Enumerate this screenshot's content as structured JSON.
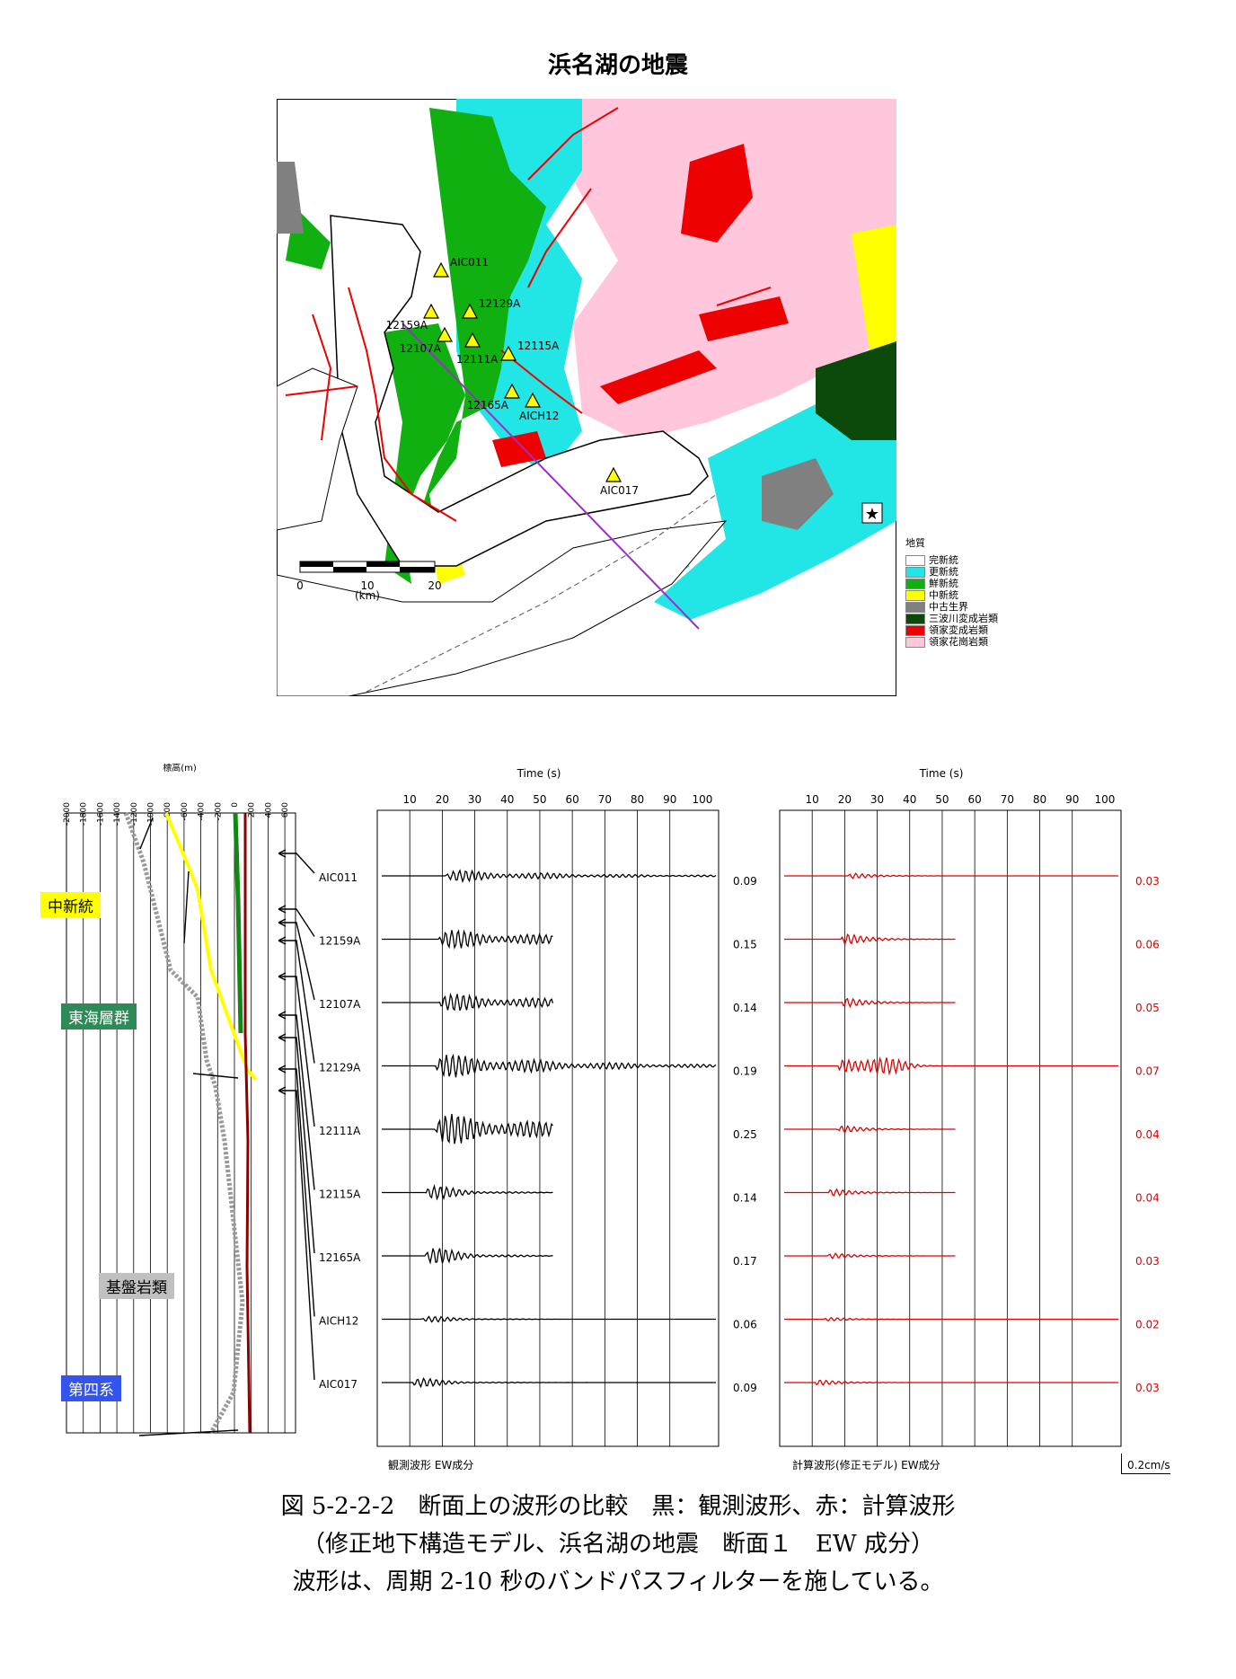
{
  "title": "浜名湖の地震",
  "map": {
    "stations": [
      {
        "id": "AIC011"
      },
      {
        "id": "12159A"
      },
      {
        "id": "12129A"
      },
      {
        "id": "12107A"
      },
      {
        "id": "12111A"
      },
      {
        "id": "12115A"
      },
      {
        "id": "12165A"
      },
      {
        "id": "AICH12"
      },
      {
        "id": "AIC017"
      }
    ],
    "scale": {
      "ticks": [
        "0",
        "10",
        "20"
      ],
      "unit": "(km)"
    },
    "legend": {
      "title": "地質",
      "items": [
        {
          "label": "完新統",
          "color": "#ffffff"
        },
        {
          "label": "更新統",
          "color": "#22e5e5"
        },
        {
          "label": "鮮新統",
          "color": "#11b011"
        },
        {
          "label": "中新統",
          "color": "#ffff00"
        },
        {
          "label": "中古生界",
          "color": "#808080"
        },
        {
          "label": "三波川変成岩類",
          "color": "#0b4a0b"
        },
        {
          "label": "領家変成岩類",
          "color": "#ee0000"
        },
        {
          "label": "領家花崗岩類",
          "color": "#ffc6dc"
        }
      ]
    }
  },
  "profile": {
    "axis_label": "標高(m)",
    "ticks": [
      "-2000",
      "-1800",
      "-1600",
      "-1400",
      "-1200",
      "-1000",
      "-800",
      "-600",
      "-400",
      "-200",
      "0",
      "200",
      "400",
      "600"
    ],
    "labels": {
      "chushin": "中新統",
      "tokai": "東海層群",
      "kiban": "基盤岩類",
      "daiyon": "第四系"
    }
  },
  "waveforms": {
    "time_label": "Time (s)",
    "time_ticks": [
      "10",
      "20",
      "30",
      "40",
      "50",
      "60",
      "70",
      "80",
      "90",
      "100"
    ],
    "observed_label": "観測波形 EW成分",
    "computed_label": "計算波形(修正モデル) EW成分",
    "scale_bar": "0.2cm/s",
    "stations": [
      "AIC011",
      "12159A",
      "12107A",
      "12129A",
      "12111A",
      "12115A",
      "12165A",
      "AICH12",
      "AIC017"
    ],
    "observed_max": [
      "0.09",
      "0.15",
      "0.14",
      "0.19",
      "0.25",
      "0.14",
      "0.17",
      "0.06",
      "0.09"
    ],
    "computed_max": [
      "0.03",
      "0.06",
      "0.05",
      "0.07",
      "0.04",
      "0.04",
      "0.03",
      "0.02",
      "0.03"
    ]
  },
  "caption": {
    "line1": "図 5-2-2-2　断面上の波形の比較　黒：観測波形、赤：計算波形",
    "line2": "（修正地下構造モデル、浜名湖の地震　断面１　EW 成分）",
    "line3": "波形は、周期 2-10 秒のバンドパスフィルターを施している。"
  }
}
